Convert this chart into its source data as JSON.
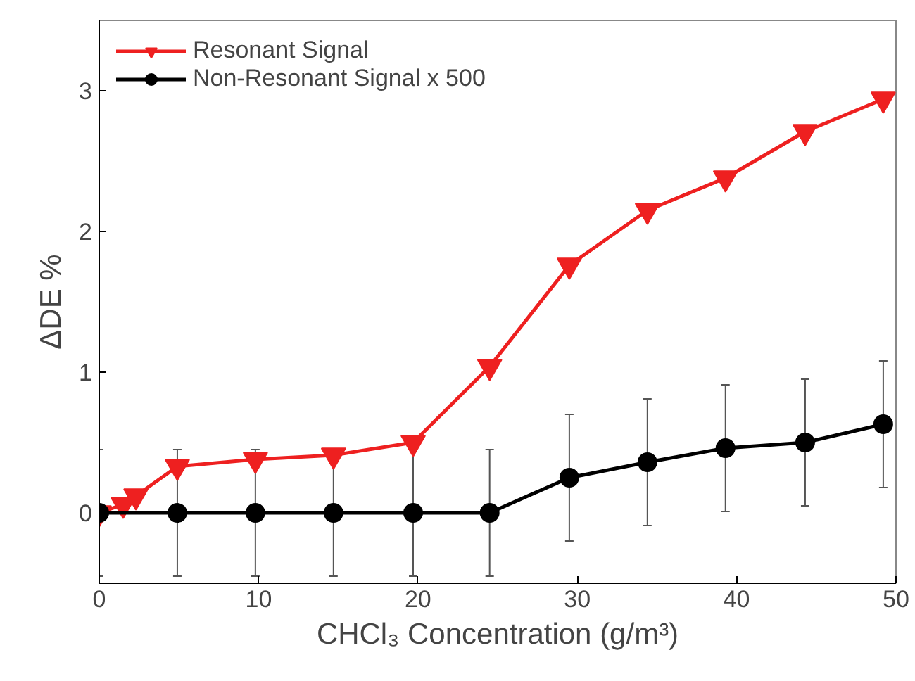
{
  "chart_data": {
    "type": "line",
    "xlabel": "CHCl₃ Concentration (g/m³)",
    "ylabel": "ΔDE %",
    "xlim": [
      0,
      50
    ],
    "ylim": [
      -0.5,
      3.5
    ],
    "xticks": [
      0,
      10,
      20,
      30,
      40,
      50
    ],
    "yticks": [
      0,
      1,
      2,
      3
    ],
    "grid": false,
    "legend": "top left",
    "series": [
      {
        "name": "Resonant Signal",
        "color": "#ee2020",
        "marker": "triangle",
        "x": [
          0,
          0.5,
          1,
          1.5,
          2.3,
          4.9,
          9.8,
          14.7,
          19.7,
          24.5,
          29.5,
          34.4,
          39.3,
          44.3,
          49.2
        ],
        "values": [
          0,
          null,
          null,
          0.06,
          0.12,
          0.33,
          0.38,
          0.41,
          0.5,
          1.04,
          1.76,
          2.15,
          2.38,
          2.71,
          2.94
        ]
      },
      {
        "name": "Non-Resonant Signal x 500",
        "color": "#000000",
        "marker": "circle",
        "x": [
          0,
          4.9,
          9.8,
          14.7,
          19.7,
          24.5,
          29.5,
          34.4,
          39.3,
          44.3,
          49.2
        ],
        "values": [
          0,
          0,
          0,
          0,
          0,
          0,
          0.25,
          0.36,
          0.46,
          0.5,
          0.63
        ],
        "errors": [
          0.45,
          0.45,
          0.45,
          0.45,
          0.45,
          0.45,
          0.45,
          0.45,
          0.45,
          0.45,
          0.45
        ]
      }
    ]
  }
}
